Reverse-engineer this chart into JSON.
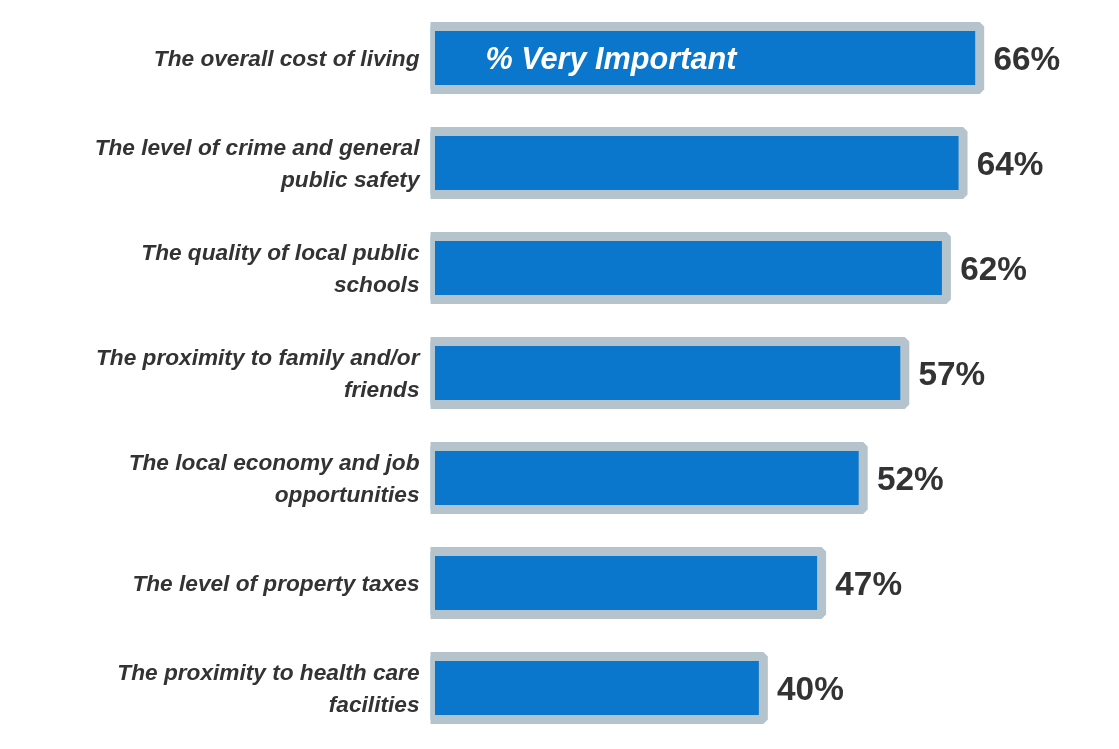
{
  "chart_data": {
    "type": "bar",
    "orientation": "horizontal",
    "categories": [
      "The overall cost of living",
      "The level of crime and general public safety",
      "The quality of local public schools",
      "The proximity to family and/or friends",
      "The local economy and job opportunities",
      "The level of property taxes",
      "The proximity to health care facilities"
    ],
    "series": [
      {
        "name": "% Very Important",
        "color": "#0a76cc",
        "values": [
          66,
          64,
          62,
          57,
          52,
          47,
          40
        ],
        "value_labels": [
          "66%",
          "64%",
          "62%",
          "57%",
          "52%",
          "47%",
          "40%"
        ]
      }
    ],
    "tick_labels": "y",
    "grid": false
  }
}
